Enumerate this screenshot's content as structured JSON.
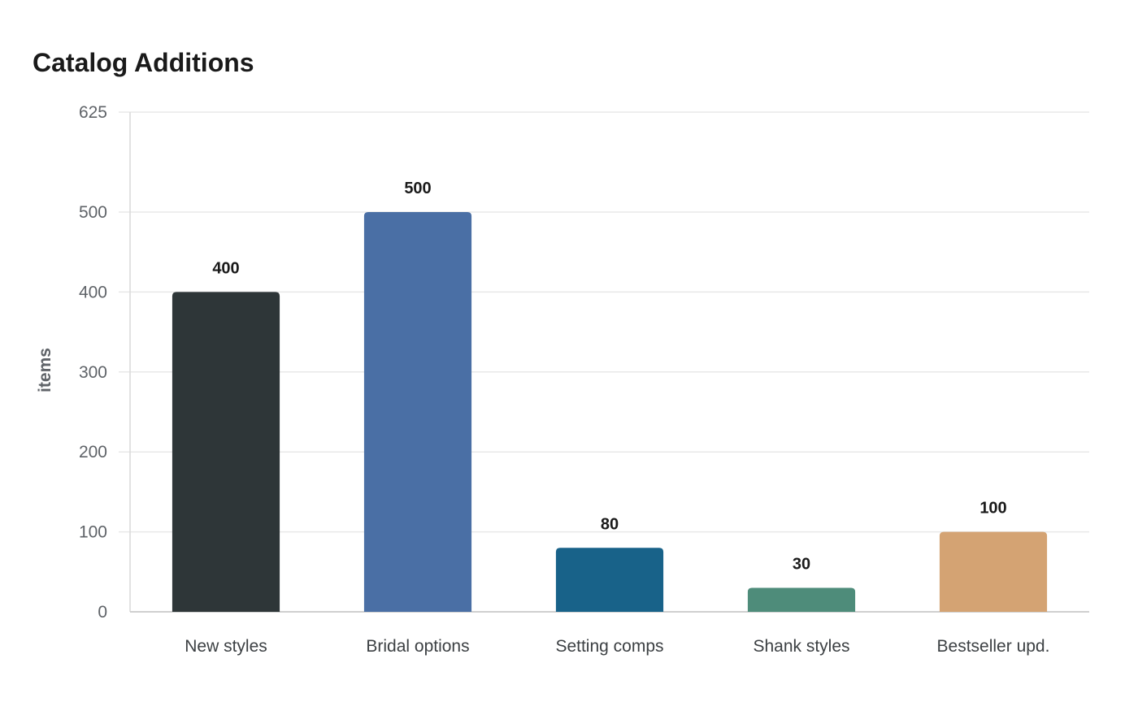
{
  "chart_data": {
    "type": "bar",
    "title": "Catalog Additions",
    "xlabel": "",
    "ylabel": "items",
    "ylim": [
      0,
      625
    ],
    "yticks": [
      0,
      100,
      200,
      300,
      400,
      500,
      625
    ],
    "grid": true,
    "legend": "none",
    "categories": [
      "New styles",
      "Bridal options",
      "Setting comps",
      "Shank styles",
      "Bestseller upd."
    ],
    "values": [
      400,
      500,
      80,
      30,
      100
    ],
    "value_labels": [
      "400",
      "500",
      "80",
      "30",
      "100"
    ],
    "colors": [
      "#2e3638",
      "#4a6fa5",
      "#186289",
      "#4e8c7a",
      "#d4a373"
    ]
  }
}
